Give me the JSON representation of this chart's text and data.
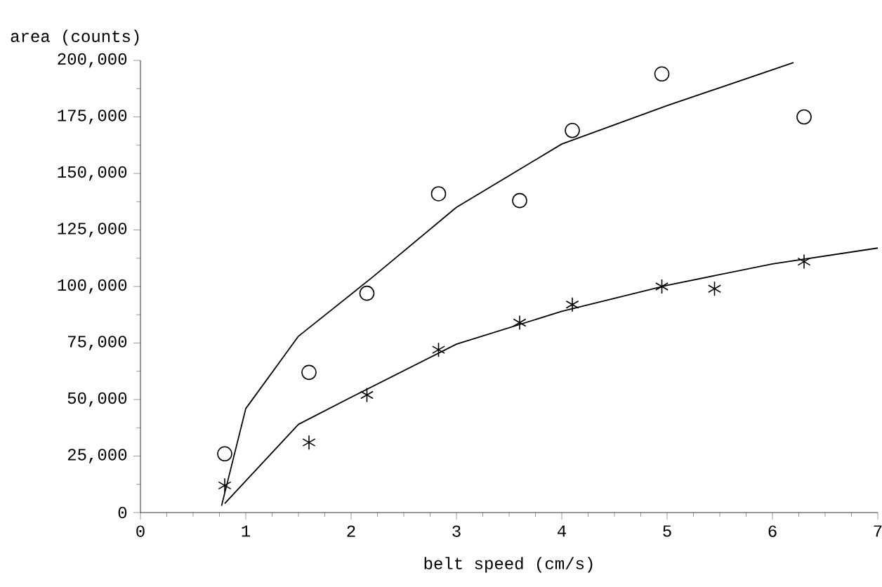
{
  "chart_data": {
    "type": "scatter",
    "xlabel": "belt speed (cm/s)",
    "ylabel": "area (counts)",
    "xlim": [
      0,
      7
    ],
    "xticks": [
      0,
      1,
      2,
      3,
      4,
      5,
      6,
      7
    ],
    "ylim": [
      0,
      200000
    ],
    "yticks": [
      {
        "value": 0,
        "label": "0"
      },
      {
        "value": 25000,
        "label": "25,000"
      },
      {
        "value": 50000,
        "label": "50,000"
      },
      {
        "value": 75000,
        "label": "75,000"
      },
      {
        "value": 100000,
        "label": "100,000"
      },
      {
        "value": 125000,
        "label": "125,000"
      },
      {
        "value": 150000,
        "label": "150,000"
      },
      {
        "value": 175000,
        "label": "175,000"
      },
      {
        "value": 200000,
        "label": "200,000"
      }
    ],
    "grid": false,
    "series": [
      {
        "marker": "circle",
        "color": "#000000",
        "x": [
          0.8,
          1.6,
          2.15,
          2.83,
          3.6,
          4.1,
          4.95,
          6.3
        ],
        "values": [
          26000,
          62000,
          97000,
          141000,
          138000,
          169000,
          194000,
          175000
        ]
      },
      {
        "marker": "cross",
        "color": "#000000",
        "x": [
          0.8,
          1.6,
          2.15,
          2.83,
          3.6,
          4.1,
          4.95,
          5.45,
          6.3
        ],
        "values": [
          12000,
          31000,
          52000,
          72000,
          84000,
          92000,
          100000,
          99000,
          111000
        ]
      },
      {
        "type": "line",
        "marker": "none",
        "line_style": "solid",
        "color": "#000000",
        "x": [
          0.77,
          1.0,
          1.5,
          2.2,
          3.0,
          4.0,
          5.0,
          6.2
        ],
        "values": [
          3000,
          46000,
          78000,
          104000,
          135000,
          163000,
          180000,
          199000
        ]
      },
      {
        "type": "line",
        "marker": "none",
        "line_style": "solid",
        "color": "#000000",
        "x": [
          0.8,
          1.0,
          1.5,
          2.0,
          3.0,
          4.0,
          5.0,
          6.0,
          7.0
        ],
        "values": [
          4000,
          14000,
          39000,
          51000,
          74500,
          89000,
          100500,
          110000,
          117000
        ]
      }
    ]
  }
}
